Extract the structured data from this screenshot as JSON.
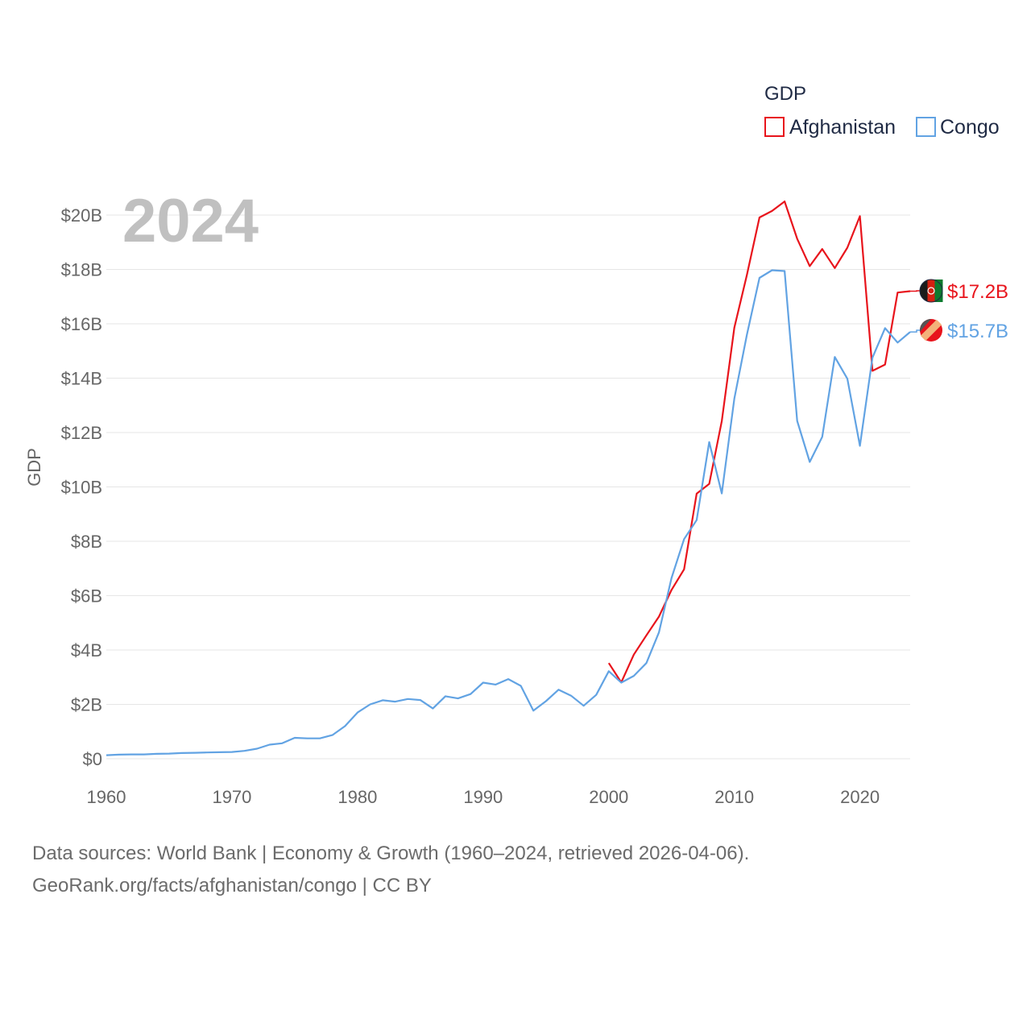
{
  "chart_data": {
    "type": "line",
    "current_year": "2024",
    "ylabel": "GDP",
    "legend_title": "GDP",
    "ylim": [
      0,
      20
    ],
    "xlim": [
      1960,
      2024
    ],
    "y_ticks": [
      0,
      2,
      4,
      6,
      8,
      10,
      12,
      14,
      16,
      18,
      20
    ],
    "y_tick_labels": [
      "$0",
      "$2B",
      "$4B",
      "$6B",
      "$8B",
      "$10B",
      "$12B",
      "$14B",
      "$16B",
      "$18B",
      "$20B"
    ],
    "x_ticks": [
      1960,
      1970,
      1980,
      1990,
      2000,
      2010,
      2020
    ],
    "x_tick_labels": [
      "1960",
      "1970",
      "1980",
      "1990",
      "2000",
      "2010",
      "2020"
    ],
    "series": [
      {
        "name": "Afghanistan",
        "color": "#e8141c",
        "end_label": "$17.2B",
        "x": [
          2000,
          2001,
          2002,
          2003,
          2004,
          2005,
          2006,
          2007,
          2008,
          2009,
          2010,
          2011,
          2012,
          2013,
          2014,
          2015,
          2016,
          2017,
          2018,
          2019,
          2020,
          2021,
          2022,
          2023,
          2024
        ],
        "values": [
          3.52,
          2.81,
          3.83,
          4.54,
          5.23,
          6.21,
          6.97,
          9.75,
          10.11,
          12.42,
          15.86,
          17.8,
          19.91,
          20.15,
          20.5,
          19.13,
          18.12,
          18.75,
          18.05,
          18.8,
          19.96,
          14.27,
          14.5,
          17.15,
          17.2
        ]
      },
      {
        "name": "Congo",
        "color": "#62a3e3",
        "end_label": "$15.7B",
        "x": [
          1960,
          1961,
          1962,
          1963,
          1964,
          1965,
          1966,
          1967,
          1968,
          1969,
          1970,
          1971,
          1972,
          1973,
          1974,
          1975,
          1976,
          1977,
          1978,
          1979,
          1980,
          1981,
          1982,
          1983,
          1984,
          1985,
          1986,
          1987,
          1988,
          1989,
          1990,
          1991,
          1992,
          1993,
          1994,
          1995,
          1996,
          1997,
          1998,
          1999,
          2000,
          2001,
          2002,
          2003,
          2004,
          2005,
          2006,
          2007,
          2008,
          2009,
          2010,
          2011,
          2012,
          2013,
          2014,
          2015,
          2016,
          2017,
          2018,
          2019,
          2020,
          2021,
          2022,
          2023,
          2024
        ],
        "values": [
          0.13,
          0.15,
          0.16,
          0.16,
          0.18,
          0.19,
          0.21,
          0.22,
          0.23,
          0.24,
          0.25,
          0.29,
          0.37,
          0.52,
          0.57,
          0.77,
          0.75,
          0.75,
          0.87,
          1.2,
          1.7,
          2.0,
          2.15,
          2.1,
          2.2,
          2.16,
          1.85,
          2.3,
          2.22,
          2.38,
          2.8,
          2.73,
          2.93,
          2.68,
          1.77,
          2.12,
          2.54,
          2.32,
          1.95,
          2.35,
          3.22,
          2.8,
          3.05,
          3.52,
          4.65,
          6.65,
          8.08,
          8.78,
          11.65,
          9.76,
          13.25,
          15.6,
          17.69,
          17.97,
          17.94,
          12.43,
          10.92,
          11.84,
          14.78,
          13.98,
          11.51,
          14.76,
          15.84,
          15.31,
          15.7
        ]
      }
    ]
  },
  "footer": {
    "sources": "Data sources: World Bank | Economy & Growth (1960–2024, retrieved 2026-04-06).",
    "credit": "GeoRank.org/facts/afghanistan/congo | CC BY"
  }
}
